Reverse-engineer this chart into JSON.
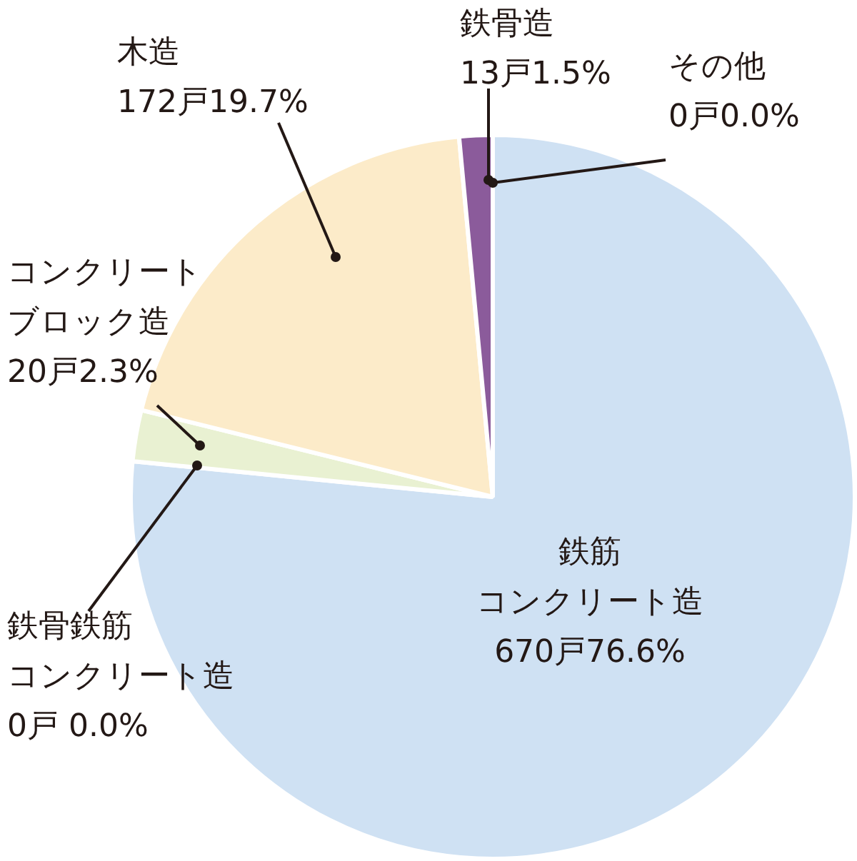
{
  "chart_data": {
    "type": "pie",
    "categories": [
      "鉄筋コンクリート造",
      "鉄骨鉄筋コンクリート造",
      "コンクリートブロック造",
      "木造",
      "鉄骨造",
      "その他"
    ],
    "values": [
      670,
      0,
      20,
      172,
      13,
      0
    ],
    "value_labels": [
      "670戸76.6%",
      "0戸 0.0%",
      "20戸2.3%",
      "172戸19.7%",
      "13戸1.5%",
      "0戸0.0%"
    ],
    "colors": [
      "#cfe1f3",
      "#e6e6e6",
      "#e9f1d2",
      "#fcebc9",
      "#8b5b9b",
      "#cccccc"
    ],
    "legend": false
  }
}
